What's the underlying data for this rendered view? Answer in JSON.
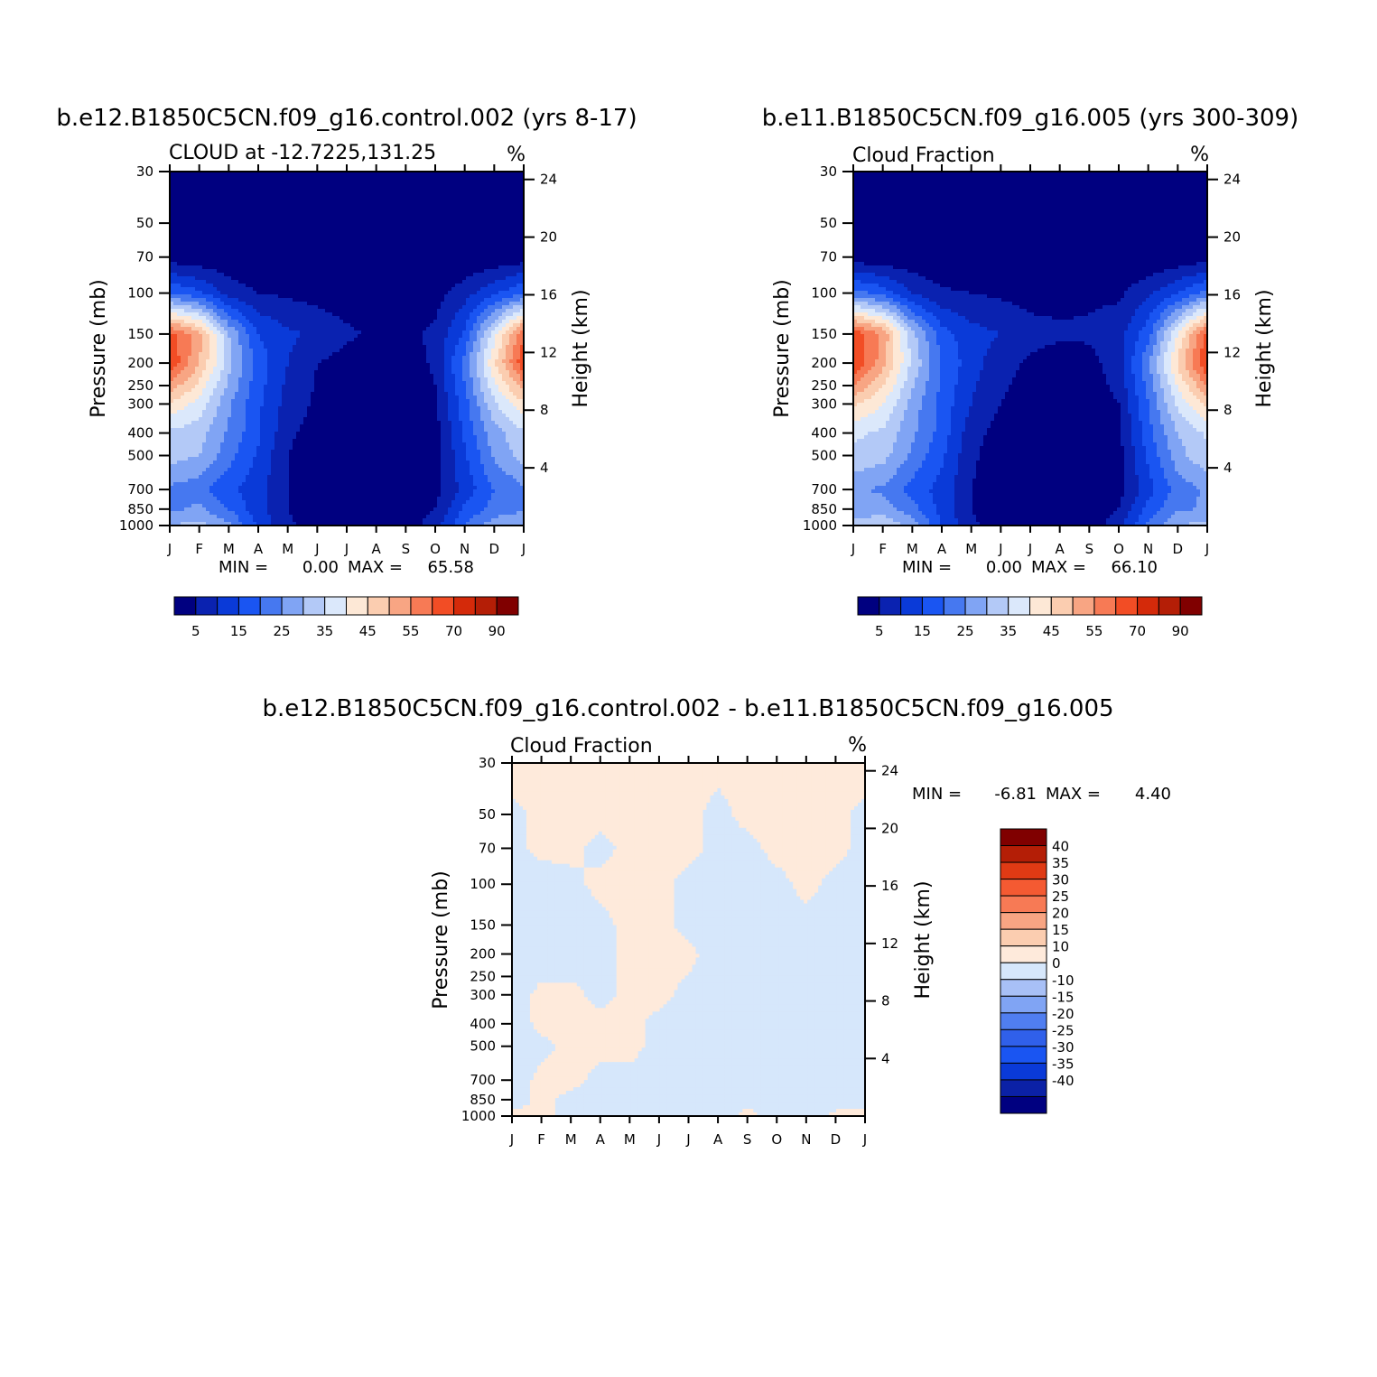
{
  "colors": {
    "fill_levels": [
      "#000080",
      "#0a22b0",
      "#0a3ad8",
      "#1a55f2",
      "#4678f0",
      "#80a4f4",
      "#b3c9f7",
      "#dbe8fb",
      "#fde8d6",
      "#fbcdb0",
      "#f8a583",
      "#f77a55",
      "#f24d25",
      "#d42a0a",
      "#b41e06",
      "#800000"
    ],
    "diff_pos": "#feeadb",
    "diff_neg": "#d6e7fb",
    "diff_bar": [
      "#000080",
      "#0b21a6",
      "#0a3ad8",
      "#1a55f2",
      "#3060ea",
      "#507ef0",
      "#80a4f4",
      "#a8c0f6",
      "#d6e7fb",
      "#feeadb",
      "#fbcdb0",
      "#f8a583",
      "#f77a55",
      "#f45a32",
      "#e03a14",
      "#b41e06",
      "#800000"
    ]
  },
  "chart_data": [
    {
      "type": "heatmap",
      "title": "b.e12.B1850C5CN.f09_g16.control.002 (yrs 8-17)",
      "left_label": "CLOUD at -12.7225,131.25",
      "units": "%",
      "ylabel": "Pressure (mb)",
      "y2label": "Height (km)",
      "y_ticks": [
        "30",
        "50",
        "70",
        "100",
        "150",
        "200",
        "250",
        "300",
        "400",
        "500",
        "700",
        "850",
        "1000"
      ],
      "y_tick_values": [
        30,
        50,
        70,
        100,
        150,
        200,
        250,
        300,
        400,
        500,
        700,
        850,
        1000
      ],
      "y2_ticks": [
        "24",
        "20",
        "16",
        "12",
        "8",
        "4"
      ],
      "y2_tick_values": [
        24,
        20,
        16,
        12,
        8,
        4
      ],
      "x_ticks": [
        "J",
        "F",
        "M",
        "A",
        "M",
        "J",
        "J",
        "A",
        "S",
        "O",
        "N",
        "D",
        "J"
      ],
      "min_label": "MIN =",
      "min_value": "0.00",
      "max_label": "MAX =",
      "max_value": "65.58",
      "colorbar_labels": [
        "5",
        "15",
        "25",
        "35",
        "45",
        "55",
        "70",
        "90"
      ],
      "colorbar_levels": [
        5,
        10,
        15,
        20,
        25,
        30,
        35,
        40,
        45,
        50,
        55,
        60,
        70,
        80,
        90
      ],
      "field": {
        "months": [
          "J",
          "F",
          "M",
          "A",
          "M",
          "J",
          "J",
          "A",
          "S",
          "O",
          "N",
          "D",
          "J"
        ],
        "levels_mb": [
          30,
          50,
          70,
          100,
          150,
          200,
          300,
          400,
          500,
          700,
          850,
          1000
        ],
        "values": [
          [
            0,
            0,
            0,
            0,
            0,
            0,
            0,
            0,
            0,
            0,
            0,
            0,
            0
          ],
          [
            0,
            0,
            0,
            0,
            0,
            0,
            0,
            0,
            0,
            0,
            0,
            0,
            0
          ],
          [
            2,
            1,
            1,
            0,
            0,
            0,
            0,
            0,
            0,
            0,
            0,
            1,
            2
          ],
          [
            20,
            16,
            8,
            5,
            4,
            3,
            2,
            2,
            3,
            3,
            8,
            14,
            20
          ],
          [
            62,
            52,
            30,
            15,
            11,
            9,
            6,
            4,
            4,
            6,
            16,
            38,
            60
          ],
          [
            65,
            50,
            32,
            18,
            10,
            5,
            3,
            1,
            2,
            6,
            22,
            44,
            64
          ],
          [
            44,
            38,
            26,
            16,
            8,
            4,
            2,
            1,
            1,
            4,
            18,
            34,
            44
          ],
          [
            34,
            32,
            24,
            16,
            6,
            3,
            1,
            1,
            1,
            3,
            16,
            28,
            34
          ],
          [
            32,
            30,
            22,
            14,
            5,
            2,
            1,
            1,
            1,
            3,
            14,
            26,
            32
          ],
          [
            24,
            22,
            16,
            12,
            5,
            2,
            1,
            1,
            1,
            3,
            12,
            20,
            24
          ],
          [
            24,
            26,
            20,
            12,
            5,
            2,
            1,
            1,
            1,
            5,
            16,
            22,
            24
          ],
          [
            30,
            32,
            26,
            14,
            6,
            3,
            2,
            2,
            2,
            8,
            20,
            28,
            30
          ]
        ]
      }
    },
    {
      "type": "heatmap",
      "title": "b.e11.B1850C5CN.f09_g16.005 (yrs 300-309)",
      "left_label": "Cloud Fraction",
      "units": "%",
      "ylabel": "Pressure (mb)",
      "y2label": "Height (km)",
      "y_ticks": [
        "30",
        "50",
        "70",
        "100",
        "150",
        "200",
        "250",
        "300",
        "400",
        "500",
        "700",
        "850",
        "1000"
      ],
      "y_tick_values": [
        30,
        50,
        70,
        100,
        150,
        200,
        250,
        300,
        400,
        500,
        700,
        850,
        1000
      ],
      "y2_ticks": [
        "24",
        "20",
        "16",
        "12",
        "8",
        "4"
      ],
      "y2_tick_values": [
        24,
        20,
        16,
        12,
        8,
        4
      ],
      "x_ticks": [
        "J",
        "F",
        "M",
        "A",
        "M",
        "J",
        "J",
        "A",
        "S",
        "O",
        "N",
        "D",
        "J"
      ],
      "min_label": "MIN =",
      "min_value": "0.00",
      "max_label": "MAX =",
      "max_value": "66.10",
      "colorbar_labels": [
        "5",
        "15",
        "25",
        "35",
        "45",
        "55",
        "70",
        "90"
      ],
      "colorbar_levels": [
        5,
        10,
        15,
        20,
        25,
        30,
        35,
        40,
        45,
        50,
        55,
        60,
        70,
        80,
        90
      ],
      "field": {
        "months": [
          "J",
          "F",
          "M",
          "A",
          "M",
          "J",
          "J",
          "A",
          "S",
          "O",
          "N",
          "D",
          "J"
        ],
        "levels_mb": [
          30,
          50,
          70,
          100,
          150,
          200,
          300,
          400,
          500,
          700,
          850,
          1000
        ],
        "values": [
          [
            0,
            0,
            0,
            0,
            0,
            0,
            0,
            0,
            0,
            0,
            0,
            0,
            0
          ],
          [
            0,
            0,
            0,
            0,
            0,
            0,
            0,
            0,
            0,
            0,
            0,
            0,
            0
          ],
          [
            2,
            1,
            1,
            0,
            0,
            0,
            0,
            0,
            0,
            0,
            0,
            1,
            2
          ],
          [
            22,
            18,
            10,
            6,
            5,
            4,
            3,
            3,
            4,
            4,
            9,
            15,
            22
          ],
          [
            64,
            54,
            32,
            17,
            12,
            10,
            7,
            6,
            6,
            8,
            18,
            40,
            62
          ],
          [
            66,
            52,
            34,
            20,
            12,
            7,
            4,
            2,
            3,
            8,
            24,
            46,
            66
          ],
          [
            46,
            40,
            28,
            18,
            10,
            5,
            2,
            1,
            2,
            5,
            20,
            36,
            46
          ],
          [
            36,
            34,
            26,
            18,
            7,
            3,
            1,
            1,
            1,
            4,
            18,
            30,
            36
          ],
          [
            34,
            32,
            24,
            16,
            6,
            2,
            1,
            1,
            1,
            3,
            16,
            28,
            34
          ],
          [
            26,
            24,
            18,
            13,
            5,
            2,
            1,
            1,
            1,
            3,
            13,
            22,
            26
          ],
          [
            26,
            28,
            22,
            13,
            5,
            2,
            1,
            1,
            1,
            5,
            17,
            24,
            26
          ],
          [
            32,
            34,
            28,
            15,
            6,
            3,
            2,
            2,
            2,
            8,
            21,
            30,
            32
          ]
        ]
      }
    },
    {
      "type": "heatmap",
      "title": "b.e12.B1850C5CN.f09_g16.control.002 - b.e11.B1850C5CN.f09_g16.005",
      "left_label": "Cloud Fraction",
      "units": "%",
      "ylabel": "Pressure (mb)",
      "y2label": "Height (km)",
      "y_ticks": [
        "30",
        "50",
        "70",
        "100",
        "150",
        "200",
        "250",
        "300",
        "400",
        "500",
        "700",
        "850",
        "1000"
      ],
      "y_tick_values": [
        30,
        50,
        70,
        100,
        150,
        200,
        250,
        300,
        400,
        500,
        700,
        850,
        1000
      ],
      "y2_ticks": [
        "24",
        "20",
        "16",
        "12",
        "8",
        "4"
      ],
      "y2_tick_values": [
        24,
        20,
        16,
        12,
        8,
        4
      ],
      "x_ticks": [
        "J",
        "F",
        "M",
        "A",
        "M",
        "J",
        "J",
        "A",
        "S",
        "O",
        "N",
        "D",
        "J"
      ],
      "min_label": "MIN =",
      "min_value": "-6.81",
      "max_label": "MAX =",
      "max_value": "4.40",
      "colorbar_labels": [
        "40",
        "35",
        "30",
        "25",
        "20",
        "15",
        "10",
        "0",
        "-10",
        "-15",
        "-20",
        "-25",
        "-30",
        "-35",
        "-40"
      ],
      "colorbar_levels": [
        -40,
        -35,
        -30,
        -25,
        -20,
        -15,
        -10,
        0,
        10,
        15,
        20,
        25,
        30,
        35,
        40
      ],
      "field": {
        "months": [
          "J",
          "F",
          "M",
          "A",
          "M",
          "J",
          "J",
          "A",
          "S",
          "O",
          "N",
          "D",
          "J"
        ],
        "levels_mb": [
          30,
          50,
          70,
          100,
          150,
          200,
          300,
          400,
          500,
          700,
          850,
          1000
        ],
        "values": [
          [
            1,
            0.5,
            0.5,
            0.5,
            0.5,
            0.5,
            0.5,
            0.5,
            0.5,
            0.5,
            0.5,
            0.5,
            1
          ],
          [
            -0.5,
            0.5,
            0.5,
            0.5,
            0.5,
            0.5,
            0.5,
            -0.5,
            0.5,
            0.5,
            0.5,
            0.5,
            -0.5
          ],
          [
            -0.5,
            0.5,
            0.5,
            -0.5,
            0.5,
            0.5,
            0.5,
            -0.5,
            -0.5,
            0.5,
            0.5,
            0.5,
            -0.5
          ],
          [
            -1,
            -1,
            -0.5,
            0.5,
            0.5,
            0.5,
            -0.5,
            -1,
            -1,
            -0.5,
            0.5,
            -0.5,
            -1
          ],
          [
            -1,
            -1,
            -1,
            -0.5,
            0.5,
            0.5,
            -0.5,
            -1,
            -1,
            -1,
            -0.5,
            -1,
            -1
          ],
          [
            -1,
            -1,
            -1,
            -0.5,
            0.5,
            0.5,
            0.5,
            -1,
            -1,
            -1,
            -1,
            -1,
            -1
          ],
          [
            -1,
            0.5,
            0.5,
            -0.5,
            0.5,
            0.5,
            -0.5,
            -1,
            -1,
            -1,
            -1,
            -1,
            -1
          ],
          [
            -1,
            0.5,
            0.5,
            0.5,
            0.5,
            -0.5,
            -1,
            -1,
            -1,
            -1,
            -1,
            -1,
            -1
          ],
          [
            -1,
            -0.5,
            0.5,
            0.5,
            0.5,
            -0.5,
            -1,
            -1,
            -1,
            -1,
            -1,
            -1,
            -1
          ],
          [
            -1,
            0.5,
            0.5,
            -0.5,
            -0.5,
            -1,
            -1,
            -0.5,
            -1,
            -1,
            -1,
            -1,
            -1
          ],
          [
            -1,
            0.5,
            -0.5,
            -0.5,
            -1,
            -1,
            -1,
            -0.5,
            -0.5,
            -1,
            -1,
            -1,
            -1
          ],
          [
            0.5,
            0.5,
            -0.5,
            -0.5,
            -1,
            -1,
            -1,
            -1,
            0.5,
            -1,
            -1,
            0.5,
            0.5
          ]
        ]
      }
    }
  ]
}
